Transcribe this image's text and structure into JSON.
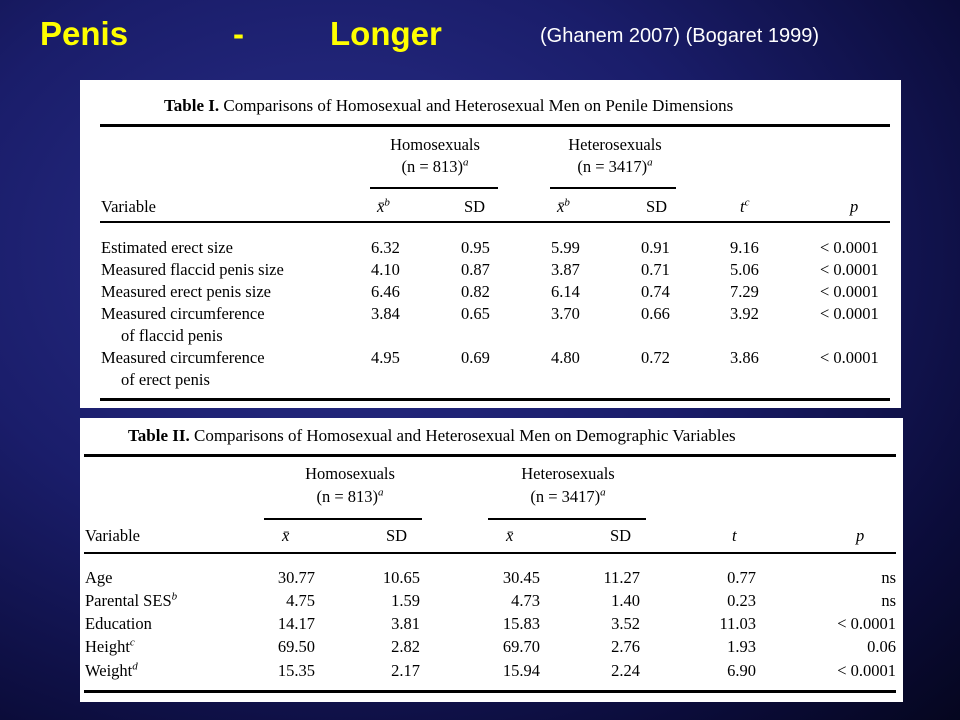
{
  "slide": {
    "title_word1": "Penis",
    "title_dash": "-",
    "title_word2": "Longer",
    "citation": "(Ghanem 2007) (Bogaret 1999)"
  },
  "table1": {
    "label": "Table I.",
    "caption": "Comparisons of Homosexual and Heterosexual Men on Penile Dimensions",
    "group1_name": "Homosexuals",
    "group1_n": "(n = 813)",
    "group1_n_sup": "a",
    "group2_name": "Heterosexuals",
    "group2_n": "(n = 3417)",
    "group2_n_sup": "a",
    "headers": {
      "variable": "Variable",
      "mean": "x̄",
      "mean_sup": "b",
      "sd": "SD",
      "t": "t",
      "t_sup": "c",
      "p": "p"
    },
    "rows": [
      {
        "variable": "Estimated erect size",
        "cont": "",
        "homo_mean": "6.32",
        "homo_sd": "0.95",
        "hetero_mean": "5.99",
        "hetero_sd": "0.91",
        "t": "9.16",
        "p": "< 0.0001"
      },
      {
        "variable": "Measured flaccid penis size",
        "cont": "",
        "homo_mean": "4.10",
        "homo_sd": "0.87",
        "hetero_mean": "3.87",
        "hetero_sd": "0.71",
        "t": "5.06",
        "p": "< 0.0001"
      },
      {
        "variable": "Measured erect penis size",
        "cont": "",
        "homo_mean": "6.46",
        "homo_sd": "0.82",
        "hetero_mean": "6.14",
        "hetero_sd": "0.74",
        "t": "7.29",
        "p": "< 0.0001"
      },
      {
        "variable": "Measured circumference",
        "cont": "of flaccid penis",
        "homo_mean": "3.84",
        "homo_sd": "0.65",
        "hetero_mean": "3.70",
        "hetero_sd": "0.66",
        "t": "3.92",
        "p": "< 0.0001"
      },
      {
        "variable": "Measured circumference",
        "cont": "of erect penis",
        "homo_mean": "4.95",
        "homo_sd": "0.69",
        "hetero_mean": "4.80",
        "hetero_sd": "0.72",
        "t": "3.86",
        "p": "< 0.0001"
      }
    ]
  },
  "table2": {
    "label": "Table II.",
    "caption": "Comparisons of Homosexual and Heterosexual Men on Demographic Variables",
    "group1_name": "Homosexuals",
    "group1_n": "(n = 813)",
    "group1_n_sup": "a",
    "group2_name": "Heterosexuals",
    "group2_n": "(n = 3417)",
    "group2_n_sup": "a",
    "headers": {
      "variable": "Variable",
      "mean": "x̄",
      "sd": "SD",
      "t": "t",
      "p": "p"
    },
    "rows": [
      {
        "variable": "Age",
        "sup": "",
        "homo_mean": "30.77",
        "homo_sd": "10.65",
        "hetero_mean": "30.45",
        "hetero_sd": "11.27",
        "t": "0.77",
        "p": "ns"
      },
      {
        "variable": "Parental SES",
        "sup": "b",
        "homo_mean": "4.75",
        "homo_sd": "1.59",
        "hetero_mean": "4.73",
        "hetero_sd": "1.40",
        "t": "0.23",
        "p": "ns"
      },
      {
        "variable": "Education",
        "sup": "",
        "homo_mean": "14.17",
        "homo_sd": "3.81",
        "hetero_mean": "15.83",
        "hetero_sd": "3.52",
        "t": "11.03",
        "p": "< 0.0001"
      },
      {
        "variable": "Height",
        "sup": "c",
        "homo_mean": "69.50",
        "homo_sd": "2.82",
        "hetero_mean": "69.70",
        "hetero_sd": "2.76",
        "t": "1.93",
        "p": "0.06"
      },
      {
        "variable": "Weight",
        "sup": "d",
        "homo_mean": "15.35",
        "homo_sd": "2.17",
        "hetero_mean": "15.94",
        "hetero_sd": "2.24",
        "t": "6.90",
        "p": "< 0.0001"
      }
    ]
  }
}
